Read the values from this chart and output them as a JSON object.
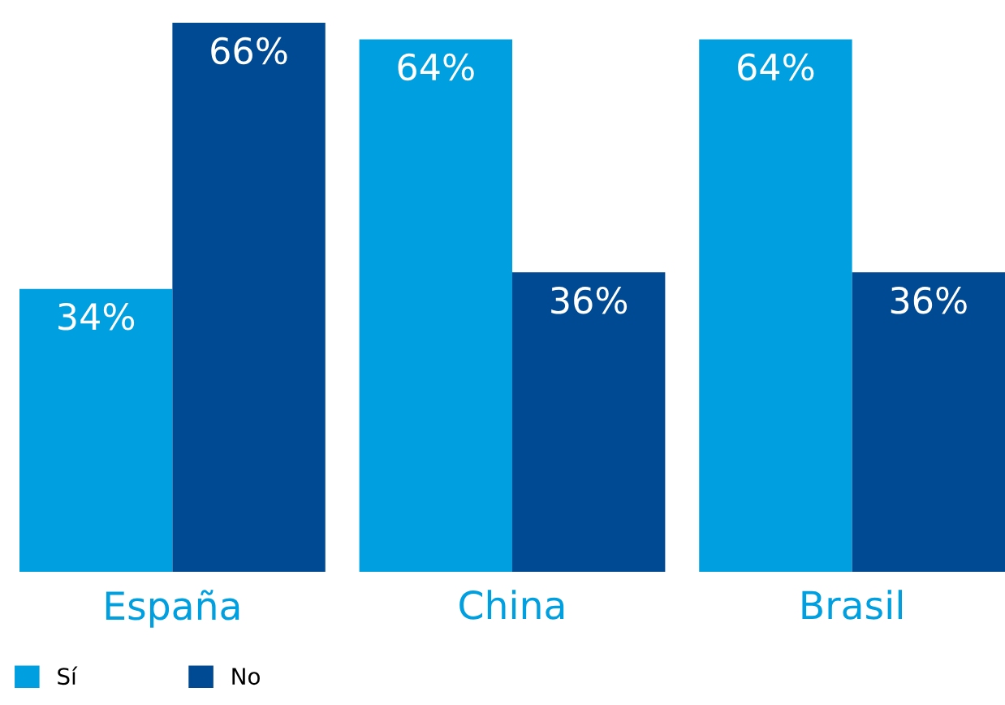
{
  "chart_data": {
    "type": "bar",
    "categories": [
      "España",
      "China",
      "Brasil"
    ],
    "series": [
      {
        "name": "Sí",
        "color": "#009fe0",
        "values": [
          34,
          64,
          64
        ],
        "value_labels": [
          "34%",
          "64%",
          "64%"
        ]
      },
      {
        "name": "No",
        "color": "#004a93",
        "values": [
          66,
          36,
          36
        ],
        "value_labels": [
          "66%",
          "36%",
          "36%"
        ]
      }
    ],
    "legend": "bottom left",
    "grid": false
  }
}
